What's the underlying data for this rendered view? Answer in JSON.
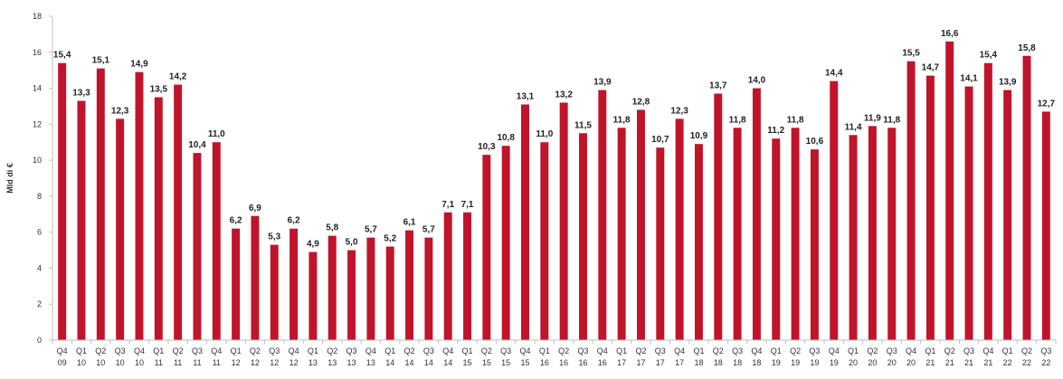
{
  "chart_data": {
    "type": "bar",
    "title": "",
    "xlabel": "",
    "ylabel": "Mld di €",
    "ylim": [
      0,
      18
    ],
    "yticks": [
      0,
      2,
      4,
      6,
      8,
      10,
      12,
      14,
      16,
      18
    ],
    "grid": false,
    "legend": "none",
    "bar_color": "#c0142b",
    "categories": [
      [
        "Q4",
        "09"
      ],
      [
        "Q1",
        "10"
      ],
      [
        "Q2",
        "10"
      ],
      [
        "Q3",
        "10"
      ],
      [
        "Q4",
        "10"
      ],
      [
        "Q1",
        "11"
      ],
      [
        "Q2",
        "11"
      ],
      [
        "Q3",
        "11"
      ],
      [
        "Q4",
        "11"
      ],
      [
        "Q1",
        "12"
      ],
      [
        "Q2",
        "12"
      ],
      [
        "Q3",
        "12"
      ],
      [
        "Q4",
        "12"
      ],
      [
        "Q1",
        "13"
      ],
      [
        "Q2",
        "13"
      ],
      [
        "Q3",
        "13"
      ],
      [
        "Q4",
        "13"
      ],
      [
        "Q1",
        "14"
      ],
      [
        "Q2",
        "14"
      ],
      [
        "Q3",
        "14"
      ],
      [
        "Q4",
        "14"
      ],
      [
        "Q1",
        "15"
      ],
      [
        "Q2",
        "15"
      ],
      [
        "Q3",
        "15"
      ],
      [
        "Q4",
        "15"
      ],
      [
        "Q1",
        "16"
      ],
      [
        "Q2",
        "16"
      ],
      [
        "Q3",
        "16"
      ],
      [
        "Q4",
        "16"
      ],
      [
        "Q1",
        "17"
      ],
      [
        "Q2",
        "17"
      ],
      [
        "Q3",
        "17"
      ],
      [
        "Q4",
        "17"
      ],
      [
        "Q1",
        "18"
      ],
      [
        "Q2",
        "18"
      ],
      [
        "Q3",
        "18"
      ],
      [
        "Q4",
        "18"
      ],
      [
        "Q1",
        "19"
      ],
      [
        "Q2",
        "19"
      ],
      [
        "Q3",
        "19"
      ],
      [
        "Q4",
        "19"
      ],
      [
        "Q1",
        "20"
      ],
      [
        "Q2",
        "20"
      ],
      [
        "Q3",
        "20"
      ],
      [
        "Q4",
        "20"
      ],
      [
        "Q1",
        "21"
      ],
      [
        "Q2",
        "21"
      ],
      [
        "Q3",
        "21"
      ],
      [
        "Q4",
        "21"
      ],
      [
        "Q1",
        "22"
      ],
      [
        "Q2",
        "22"
      ],
      [
        "Q3",
        "22"
      ]
    ],
    "values": [
      15.4,
      13.3,
      15.1,
      12.3,
      14.9,
      13.5,
      14.2,
      10.4,
      11.0,
      6.2,
      6.9,
      5.3,
      6.2,
      4.9,
      5.8,
      5.0,
      5.7,
      5.2,
      6.1,
      5.7,
      7.1,
      7.1,
      10.3,
      10.8,
      13.1,
      11.0,
      13.2,
      11.5,
      13.9,
      11.8,
      12.8,
      10.7,
      12.3,
      10.9,
      13.7,
      11.8,
      14.0,
      11.2,
      11.8,
      10.6,
      14.4,
      11.4,
      11.9,
      11.8,
      15.5,
      14.7,
      16.6,
      14.1,
      15.4,
      13.9,
      15.8,
      12.7
    ],
    "value_labels": [
      "15,4",
      "13,3",
      "15,1",
      "12,3",
      "14,9",
      "13,5",
      "14,2",
      "10,4",
      "11,0",
      "6,2",
      "6,9",
      "5,3",
      "6,2",
      "4,9",
      "5,8",
      "5,0",
      "5,7",
      "5,2",
      "6,1",
      "5,7",
      "7,1",
      "7,1",
      "10,3",
      "10,8",
      "13,1",
      "11,0",
      "13,2",
      "11,5",
      "13,9",
      "11,8",
      "12,8",
      "10,7",
      "12,3",
      "10,9",
      "13,7",
      "11,8",
      "14,0",
      "11,2",
      "11,8",
      "10,6",
      "14,4",
      "11,4",
      "11,9",
      "11,8",
      "15,5",
      "14,7",
      "16,6",
      "14,1",
      "15,4",
      "13,9",
      "15,8",
      "12,7"
    ]
  }
}
